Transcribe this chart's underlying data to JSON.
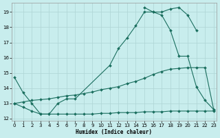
{
  "xlabel": "Humidex (Indice chaleur)",
  "bg_color": "#c8eded",
  "grid_color": "#aed4d4",
  "line_color": "#1a6e5e",
  "xlim_min": -0.3,
  "xlim_max": 23.3,
  "ylim_min": 11.85,
  "ylim_max": 19.6,
  "yticks": [
    12,
    13,
    14,
    15,
    16,
    17,
    18,
    19
  ],
  "xticks": [
    0,
    1,
    2,
    3,
    4,
    5,
    6,
    7,
    8,
    9,
    10,
    11,
    12,
    13,
    14,
    15,
    16,
    17,
    18,
    19,
    20,
    21,
    22,
    23
  ],
  "curve1_x": [
    0,
    1,
    2,
    3,
    4,
    5,
    6,
    7,
    11,
    12,
    13,
    14,
    15,
    16,
    17,
    18,
    19,
    20,
    21
  ],
  "curve1_y": [
    14.7,
    13.7,
    13.0,
    12.3,
    12.3,
    13.0,
    13.3,
    13.3,
    15.5,
    16.6,
    17.3,
    18.1,
    19.0,
    19.0,
    19.0,
    19.2,
    19.3,
    18.8,
    17.8
  ],
  "curve2_x": [
    15,
    16,
    17,
    18,
    19,
    20,
    21,
    22,
    23
  ],
  "curve2_y": [
    19.3,
    19.0,
    18.8,
    17.8,
    16.1,
    16.1,
    14.1,
    13.2,
    12.6
  ],
  "curve3_x": [
    0,
    1,
    2,
    3,
    4,
    5,
    6,
    7,
    8,
    9,
    10,
    11,
    12,
    13,
    14,
    15,
    16,
    17,
    18,
    19,
    20,
    21,
    22,
    23
  ],
  "curve3_y": [
    13.0,
    13.1,
    13.2,
    13.25,
    13.3,
    13.4,
    13.5,
    13.55,
    13.65,
    13.75,
    13.9,
    14.0,
    14.1,
    14.3,
    14.45,
    14.65,
    14.9,
    15.1,
    15.25,
    15.3,
    15.35,
    15.35,
    15.35,
    12.6
  ],
  "curve4_x": [
    0,
    1,
    2,
    3,
    4,
    5,
    6,
    7,
    8,
    9,
    10,
    11,
    12,
    13,
    14,
    15,
    16,
    17,
    18,
    19,
    20,
    21,
    22,
    23
  ],
  "curve4_y": [
    13.0,
    12.75,
    12.5,
    12.3,
    12.3,
    12.3,
    12.3,
    12.3,
    12.3,
    12.3,
    12.35,
    12.35,
    12.4,
    12.4,
    12.4,
    12.45,
    12.45,
    12.45,
    12.5,
    12.5,
    12.5,
    12.5,
    12.5,
    12.5
  ]
}
